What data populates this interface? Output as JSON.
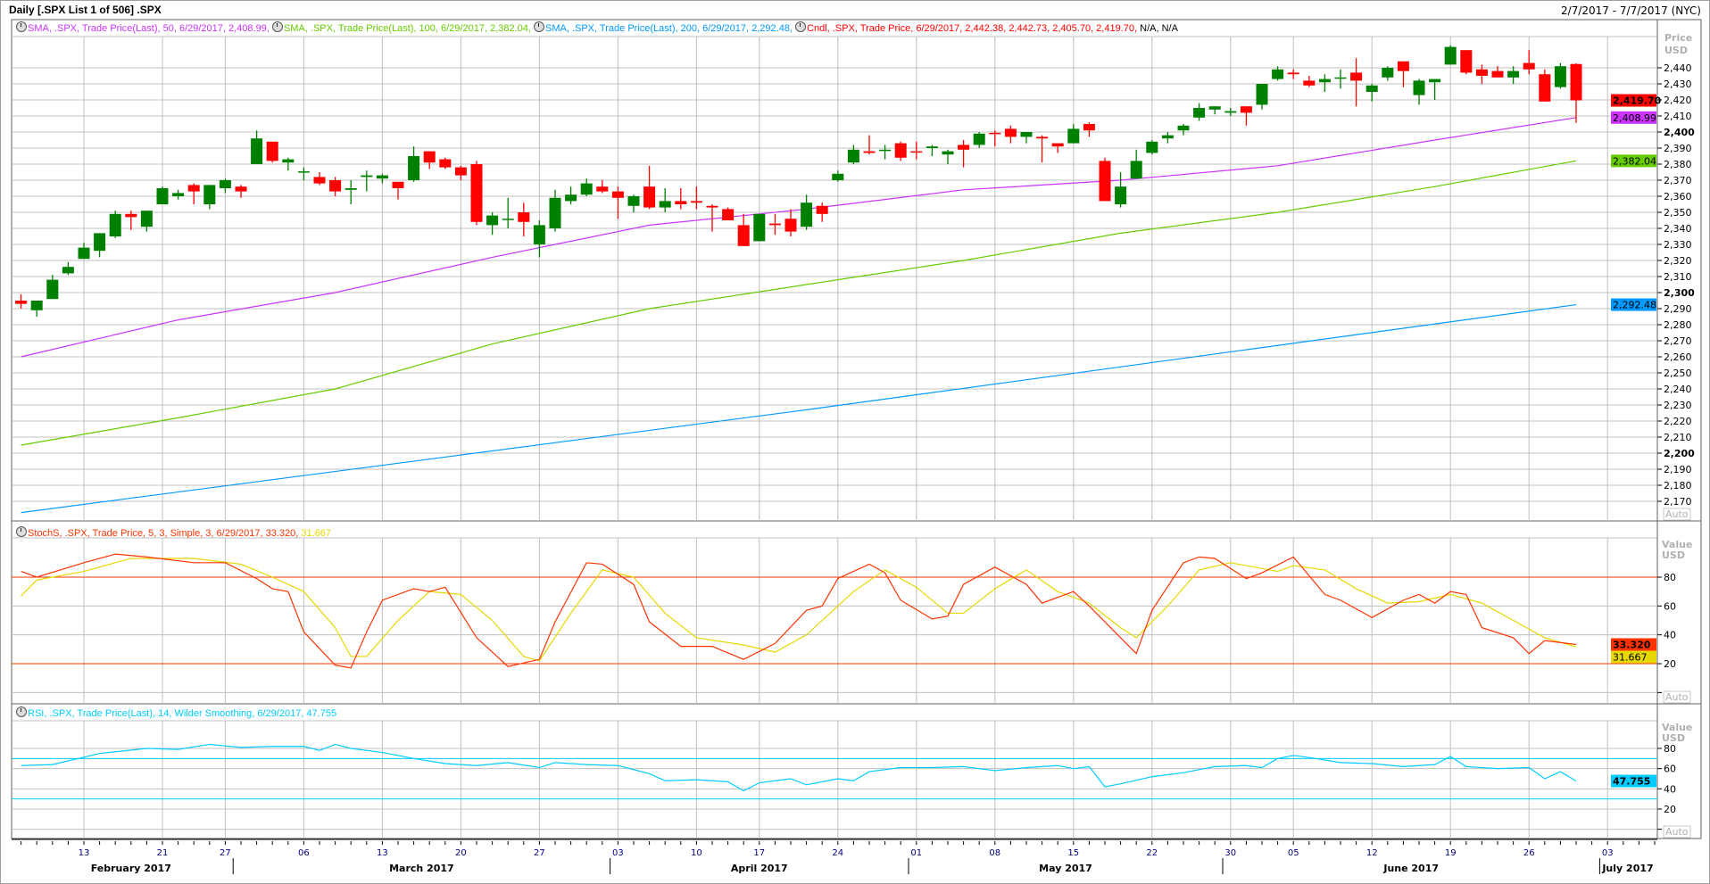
{
  "window": {
    "title": "Daily [.SPX List 1 of 506] .SPX",
    "date_range": "2/7/2017 - 7/7/2017 (NYC)"
  },
  "colors": {
    "up": "#008000",
    "down": "#ff0000",
    "sma50": "#cc33ff",
    "sma100": "#66cc00",
    "sma200": "#0099ff",
    "stoch_k": "#ff3300",
    "stoch_d": "#e6d800",
    "rsi": "#00ccff",
    "grid": "#c0c0c0"
  },
  "legends": {
    "sma50": "SMA, .SPX, Trade Price(Last),  50, 6/29/2017, 2,408.99,",
    "sma100": "SMA, .SPX, Trade Price(Last),  100, 6/29/2017, 2,382.04,",
    "sma200": "SMA, .SPX, Trade Price(Last),  200, 6/29/2017, 2,292.48,",
    "cndl": "Cndl, .SPX, Trade Price, 6/29/2017, 2,442.38, 2,442.73, 2,405.70, 2,419.70,",
    "cndl_na": "N/A, N/A",
    "stoch": "StochS, .SPX, Trade Price,  5, 3, Simple, 3, 6/29/2017, 33.320,",
    "stoch_d": "31.667",
    "rsi": "RSI, .SPX, Trade Price(Last),  14, Wilder Smoothing, 6/29/2017, 47.755"
  },
  "axes": {
    "price_label": "Price",
    "currency": "USD",
    "value_label": "Value",
    "auto": "Auto",
    "price_ticks": [
      2170,
      2180,
      2190,
      2200,
      2210,
      2220,
      2230,
      2240,
      2250,
      2260,
      2270,
      2280,
      2290,
      2300,
      2310,
      2320,
      2330,
      2340,
      2350,
      2360,
      2370,
      2380,
      2390,
      2400,
      2410,
      2420,
      2430,
      2440
    ],
    "stoch_ticks": [
      20,
      40,
      60,
      80
    ],
    "rsi_ticks": [
      20,
      40,
      60,
      80
    ],
    "badges": {
      "close": "2,419.70",
      "sma50": "2,408.99",
      "sma100": "2,382.04",
      "sma200": "2,292.48",
      "stoch_k": "33.320",
      "stoch_d": "31.667",
      "rsi": "47.755"
    },
    "day_ticks": [
      {
        "label": "13",
        "i": 4
      },
      {
        "label": "21",
        "i": 9
      },
      {
        "label": "27",
        "i": 13
      },
      {
        "label": "06",
        "i": 18
      },
      {
        "label": "13",
        "i": 23
      },
      {
        "label": "20",
        "i": 28
      },
      {
        "label": "27",
        "i": 33
      },
      {
        "label": "03",
        "i": 38
      },
      {
        "label": "10",
        "i": 43
      },
      {
        "label": "17",
        "i": 47
      },
      {
        "label": "24",
        "i": 52
      },
      {
        "label": "01",
        "i": 57
      },
      {
        "label": "08",
        "i": 62
      },
      {
        "label": "15",
        "i": 67
      },
      {
        "label": "22",
        "i": 72
      },
      {
        "label": "30",
        "i": 77
      },
      {
        "label": "05",
        "i": 81
      },
      {
        "label": "12",
        "i": 86
      },
      {
        "label": "19",
        "i": 91
      },
      {
        "label": "26",
        "i": 96
      },
      {
        "label": "03",
        "i": 101
      }
    ],
    "months": [
      {
        "label": "February 2017",
        "from": 0,
        "to": 14
      },
      {
        "label": "March 2017",
        "from": 14,
        "to": 37
      },
      {
        "label": "April 2017",
        "from": 38,
        "to": 56
      },
      {
        "label": "May 2017",
        "from": 57,
        "to": 76
      },
      {
        "label": "June 2017",
        "from": 77,
        "to": 100
      },
      {
        "label": "July 2017",
        "from": 101,
        "to": 104
      }
    ]
  },
  "chart_data": {
    "type": "candlestick",
    "price_range": [
      2158,
      2460
    ],
    "ohlc": [
      [
        2295,
        2299,
        2290,
        2293
      ],
      [
        2289,
        2295,
        2285,
        2295
      ],
      [
        2296,
        2311,
        2296,
        2308
      ],
      [
        2312,
        2319,
        2311,
        2316
      ],
      [
        2321,
        2331,
        2321,
        2328
      ],
      [
        2326,
        2337,
        2322,
        2337
      ],
      [
        2335,
        2351,
        2334,
        2349
      ],
      [
        2349,
        2351,
        2339,
        2347
      ],
      [
        2341,
        2351,
        2338,
        2351
      ],
      [
        2355,
        2366,
        2355,
        2365
      ],
      [
        2360,
        2364,
        2358,
        2362
      ],
      [
        2367,
        2368,
        2355,
        2363
      ],
      [
        2355,
        2367,
        2352,
        2367
      ],
      [
        2365,
        2371,
        2362,
        2370
      ],
      [
        2366,
        2367,
        2359,
        2363
      ],
      [
        2380,
        2401,
        2380,
        2396
      ],
      [
        2394,
        2394,
        2381,
        2382
      ],
      [
        2381,
        2384,
        2376,
        2383
      ],
      [
        2375,
        2378,
        2370,
        2375.5
      ],
      [
        2372,
        2375,
        2367,
        2368
      ],
      [
        2370,
        2372,
        2360,
        2363
      ],
      [
        2364,
        2370,
        2355,
        2365
      ],
      [
        2372,
        2376,
        2363,
        2373
      ],
      [
        2371,
        2374,
        2368,
        2373
      ],
      [
        2369,
        2369,
        2358,
        2365
      ],
      [
        2370,
        2391,
        2369,
        2385
      ],
      [
        2388,
        2388,
        2377,
        2381
      ],
      [
        2383,
        2384,
        2377,
        2378
      ],
      [
        2378,
        2379,
        2370,
        2373
      ],
      [
        2380,
        2382,
        2342,
        2344
      ],
      [
        2342,
        2350,
        2336,
        2348
      ],
      [
        2346,
        2359,
        2340,
        2346
      ],
      [
        2350,
        2356,
        2335,
        2344
      ],
      [
        2330,
        2345,
        2322,
        2342
      ],
      [
        2340,
        2364,
        2338,
        2359
      ],
      [
        2357,
        2366,
        2355,
        2361
      ],
      [
        2361,
        2371,
        2360,
        2368
      ],
      [
        2366,
        2370,
        2362,
        2363
      ],
      [
        2363,
        2366,
        2346,
        2359
      ],
      [
        2354,
        2361,
        2350,
        2360
      ],
      [
        2366,
        2379,
        2352,
        2353
      ],
      [
        2353,
        2365,
        2350,
        2357
      ],
      [
        2357,
        2365,
        2352,
        2355
      ],
      [
        2357,
        2366,
        2352,
        2356
      ],
      [
        2354,
        2355,
        2338,
        2353
      ],
      [
        2352,
        2353,
        2345,
        2345
      ],
      [
        2342,
        2349,
        2329,
        2329
      ],
      [
        2332,
        2349,
        2332,
        2349
      ],
      [
        2343,
        2349,
        2336,
        2342
      ],
      [
        2346,
        2352,
        2335,
        2338
      ],
      [
        2341,
        2361,
        2339,
        2356
      ],
      [
        2354,
        2356,
        2344,
        2349
      ],
      [
        2370,
        2376,
        2369,
        2374
      ],
      [
        2381,
        2392,
        2380,
        2389
      ],
      [
        2388,
        2398,
        2386,
        2387
      ],
      [
        2389,
        2392,
        2383,
        2389
      ],
      [
        2393,
        2394,
        2382,
        2384
      ],
      [
        2388,
        2394,
        2383,
        2387.5
      ],
      [
        2390,
        2392,
        2385,
        2391
      ],
      [
        2386,
        2389,
        2380,
        2388
      ],
      [
        2392,
        2395,
        2378,
        2389
      ],
      [
        2392,
        2400,
        2390,
        2399
      ],
      [
        2399.5,
        2401,
        2391,
        2399
      ],
      [
        2402,
        2404,
        2393,
        2397
      ],
      [
        2397,
        2400,
        2393,
        2400
      ],
      [
        2397,
        2398,
        2381,
        2396
      ],
      [
        2393,
        2393,
        2387,
        2391
      ],
      [
        2393,
        2405,
        2393,
        2402
      ],
      [
        2405,
        2406,
        2397,
        2401
      ],
      [
        2382,
        2384,
        2357,
        2357
      ],
      [
        2355,
        2375,
        2353,
        2366
      ],
      [
        2371,
        2389,
        2371,
        2382
      ],
      [
        2387,
        2395,
        2386,
        2394
      ],
      [
        2396,
        2400,
        2393,
        2398
      ],
      [
        2401,
        2405,
        2398,
        2404
      ],
      [
        2409,
        2418,
        2407,
        2415
      ],
      [
        2414,
        2416,
        2411,
        2416
      ],
      [
        2412,
        2415,
        2410,
        2413
      ],
      [
        2416,
        2416,
        2404,
        2412
      ],
      [
        2417,
        2430,
        2414,
        2430
      ],
      [
        2433,
        2441,
        2432,
        2439
      ],
      [
        2437,
        2439,
        2433,
        2436
      ],
      [
        2432,
        2435,
        2428,
        2429
      ],
      [
        2431,
        2436,
        2425,
        2433
      ],
      [
        2434,
        2439,
        2427,
        2434
      ],
      [
        2437,
        2446,
        2416,
        2432
      ],
      [
        2425,
        2430,
        2419,
        2429
      ],
      [
        2434,
        2441,
        2432,
        2440
      ],
      [
        2444,
        2444,
        2428,
        2438
      ],
      [
        2423,
        2433,
        2417,
        2432
      ],
      [
        2431,
        2433,
        2420,
        2433
      ],
      [
        2442,
        2454,
        2442,
        2453
      ],
      [
        2451,
        2451,
        2436,
        2437
      ],
      [
        2439,
        2442,
        2430,
        2435
      ],
      [
        2438,
        2441,
        2434,
        2434
      ],
      [
        2434,
        2441,
        2430,
        2438
      ],
      [
        2443,
        2451,
        2436,
        2439
      ],
      [
        2436,
        2439,
        2419,
        2419
      ],
      [
        2428,
        2443,
        2427,
        2441
      ],
      [
        2442.38,
        2442.73,
        2405.7,
        2419.7
      ]
    ],
    "sma50": [
      [
        0,
        2260
      ],
      [
        10,
        2283
      ],
      [
        20,
        2300
      ],
      [
        30,
        2322
      ],
      [
        40,
        2342
      ],
      [
        50,
        2352
      ],
      [
        60,
        2364
      ],
      [
        70,
        2370
      ],
      [
        80,
        2379
      ],
      [
        90,
        2395
      ],
      [
        99,
        2408.99
      ]
    ],
    "sma100": [
      [
        0,
        2205
      ],
      [
        10,
        2222
      ],
      [
        20,
        2240
      ],
      [
        30,
        2268
      ],
      [
        40,
        2290
      ],
      [
        50,
        2305
      ],
      [
        60,
        2320
      ],
      [
        70,
        2337
      ],
      [
        80,
        2350
      ],
      [
        90,
        2366
      ],
      [
        99,
        2382.04
      ]
    ],
    "sma200": [
      [
        0,
        2163
      ],
      [
        50,
        2227
      ],
      [
        99,
        2292.48
      ]
    ],
    "stoch_k": [
      [
        0,
        84
      ],
      [
        1,
        80
      ],
      [
        4,
        90
      ],
      [
        6,
        96
      ],
      [
        8,
        94
      ],
      [
        11,
        90
      ],
      [
        13,
        90
      ],
      [
        15,
        79
      ],
      [
        16,
        72
      ],
      [
        17,
        70
      ],
      [
        18,
        42
      ],
      [
        20,
        19
      ],
      [
        21,
        17
      ],
      [
        22,
        42
      ],
      [
        23,
        64
      ],
      [
        25,
        72
      ],
      [
        26,
        70
      ],
      [
        27,
        73
      ],
      [
        29,
        38
      ],
      [
        31,
        18
      ],
      [
        33,
        23
      ],
      [
        34,
        49
      ],
      [
        36,
        90
      ],
      [
        37,
        89
      ],
      [
        39,
        75
      ],
      [
        40,
        49
      ],
      [
        42,
        32
      ],
      [
        44,
        32
      ],
      [
        46,
        23
      ],
      [
        48,
        34
      ],
      [
        50,
        57
      ],
      [
        51,
        60
      ],
      [
        52,
        79
      ],
      [
        54,
        89
      ],
      [
        55,
        83
      ],
      [
        56,
        64
      ],
      [
        58,
        51
      ],
      [
        59,
        53
      ],
      [
        60,
        75
      ],
      [
        62,
        87
      ],
      [
        64,
        75
      ],
      [
        65,
        62
      ],
      [
        67,
        70
      ],
      [
        68,
        60
      ],
      [
        70,
        38
      ],
      [
        71,
        27
      ],
      [
        72,
        57
      ],
      [
        74,
        90
      ],
      [
        75,
        94
      ],
      [
        76,
        93
      ],
      [
        78,
        79
      ],
      [
        79,
        83
      ],
      [
        81,
        94
      ],
      [
        83,
        68
      ],
      [
        84,
        64
      ],
      [
        86,
        52
      ],
      [
        88,
        64
      ],
      [
        89,
        68
      ],
      [
        90,
        62
      ],
      [
        91,
        70
      ],
      [
        92,
        68
      ],
      [
        93,
        45
      ],
      [
        95,
        38
      ],
      [
        96,
        27
      ],
      [
        97,
        36
      ],
      [
        99,
        33.32
      ]
    ],
    "stoch_d": [
      [
        0,
        67
      ],
      [
        1,
        78
      ],
      [
        4,
        84
      ],
      [
        7,
        93
      ],
      [
        11,
        93
      ],
      [
        14,
        89
      ],
      [
        16,
        80
      ],
      [
        18,
        70
      ],
      [
        20,
        45
      ],
      [
        21,
        25
      ],
      [
        22,
        25
      ],
      [
        24,
        50
      ],
      [
        26,
        70
      ],
      [
        28,
        68
      ],
      [
        30,
        50
      ],
      [
        32,
        25
      ],
      [
        33,
        22
      ],
      [
        35,
        55
      ],
      [
        37,
        85
      ],
      [
        39,
        80
      ],
      [
        41,
        55
      ],
      [
        43,
        38
      ],
      [
        46,
        33
      ],
      [
        48,
        28
      ],
      [
        50,
        40
      ],
      [
        53,
        70
      ],
      [
        55,
        85
      ],
      [
        57,
        73
      ],
      [
        59,
        55
      ],
      [
        60,
        55
      ],
      [
        62,
        72
      ],
      [
        64,
        85
      ],
      [
        66,
        70
      ],
      [
        68,
        62
      ],
      [
        70,
        45
      ],
      [
        71,
        38
      ],
      [
        73,
        60
      ],
      [
        75,
        85
      ],
      [
        77,
        90
      ],
      [
        80,
        84
      ],
      [
        81,
        88
      ],
      [
        83,
        85
      ],
      [
        85,
        72
      ],
      [
        87,
        62
      ],
      [
        89,
        63
      ],
      [
        91,
        68
      ],
      [
        93,
        62
      ],
      [
        95,
        50
      ],
      [
        97,
        38
      ],
      [
        99,
        31.667
      ]
    ],
    "stoch_levels": [
      80,
      20
    ],
    "rsi": [
      [
        0,
        63
      ],
      [
        2,
        64
      ],
      [
        5,
        75
      ],
      [
        8,
        80
      ],
      [
        10,
        79
      ],
      [
        12,
        84
      ],
      [
        14,
        81
      ],
      [
        16,
        82
      ],
      [
        18,
        82
      ],
      [
        19,
        78
      ],
      [
        20,
        84
      ],
      [
        21,
        80
      ],
      [
        23,
        76
      ],
      [
        25,
        70
      ],
      [
        27,
        65
      ],
      [
        29,
        63
      ],
      [
        31,
        66
      ],
      [
        33,
        61
      ],
      [
        34,
        66
      ],
      [
        36,
        64
      ],
      [
        38,
        63
      ],
      [
        40,
        55
      ],
      [
        41,
        48
      ],
      [
        43,
        49
      ],
      [
        45,
        47
      ],
      [
        46,
        38
      ],
      [
        47,
        46
      ],
      [
        49,
        50
      ],
      [
        50,
        44
      ],
      [
        52,
        50
      ],
      [
        53,
        48
      ],
      [
        54,
        57
      ],
      [
        56,
        61
      ],
      [
        58,
        61
      ],
      [
        60,
        62
      ],
      [
        62,
        58
      ],
      [
        64,
        61
      ],
      [
        66,
        63
      ],
      [
        67,
        60
      ],
      [
        68,
        62
      ],
      [
        69,
        42
      ],
      [
        70,
        45
      ],
      [
        72,
        52
      ],
      [
        74,
        56
      ],
      [
        76,
        62
      ],
      [
        78,
        63
      ],
      [
        79,
        61
      ],
      [
        80,
        70
      ],
      [
        81,
        73
      ],
      [
        82,
        71
      ],
      [
        84,
        66
      ],
      [
        86,
        65
      ],
      [
        88,
        62
      ],
      [
        90,
        64
      ],
      [
        91,
        72
      ],
      [
        92,
        62
      ],
      [
        94,
        60
      ],
      [
        96,
        61
      ],
      [
        97,
        50
      ],
      [
        98,
        57
      ],
      [
        99,
        47.755
      ]
    ],
    "rsi_levels": [
      70,
      30
    ]
  }
}
